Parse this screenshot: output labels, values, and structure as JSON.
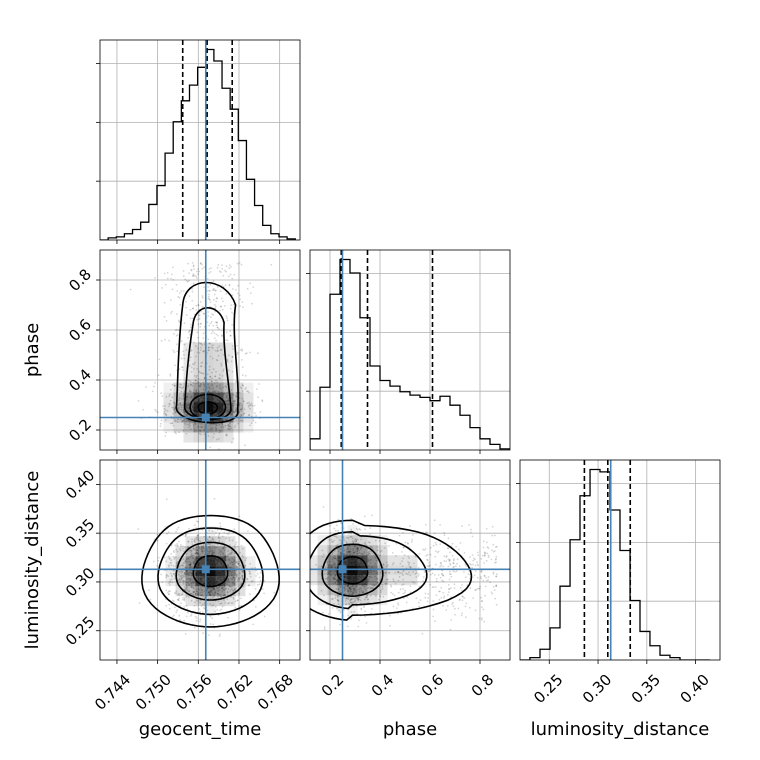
{
  "chart_data": {
    "type": "corner",
    "parameters": [
      {
        "name": "geocent_time",
        "label": "geocent_time",
        "range": [
          0.7415,
          0.771
        ],
        "ticks": [
          0.744,
          0.75,
          0.756,
          0.762,
          0.768
        ],
        "tick_labels": [
          "0.744",
          "0.750",
          "0.756",
          "0.762",
          "0.768"
        ],
        "truth": 0.7571,
        "quantiles": [
          0.7537,
          0.7573,
          0.761
        ]
      },
      {
        "name": "phase",
        "label": "phase",
        "range": [
          0.12,
          0.92
        ],
        "ticks": [
          0.2,
          0.4,
          0.6,
          0.8
        ],
        "tick_labels": [
          "0.2",
          "0.4",
          "0.6",
          "0.8"
        ],
        "truth": 0.25,
        "quantiles": [
          0.245,
          0.35,
          0.61
        ]
      },
      {
        "name": "luminosity_distance",
        "label": "luminosity_distance",
        "range": [
          0.22,
          0.425
        ],
        "ticks": [
          0.25,
          0.3,
          0.35,
          0.4
        ],
        "tick_labels": [
          "0.25",
          "0.30",
          "0.35",
          "0.40"
        ],
        "truth": 0.313,
        "quantiles": [
          0.286,
          0.31,
          0.333
        ]
      }
    ],
    "truth_color": "#4682b4",
    "hist_color": "#000000",
    "grid": true,
    "histograms": [
      {
        "param": "geocent_time",
        "bin_edges": [
          0.7415,
          0.7427,
          0.7439,
          0.7451,
          0.7463,
          0.7475,
          0.7487,
          0.7499,
          0.7511,
          0.7523,
          0.7535,
          0.7547,
          0.7559,
          0.7571,
          0.7583,
          0.7595,
          0.7607,
          0.7619,
          0.7631,
          0.7643,
          0.7655,
          0.7667,
          0.7679,
          0.7691,
          0.7703
        ],
        "counts": [
          0,
          2,
          3,
          6,
          10,
          17,
          34,
          52,
          83,
          113,
          133,
          148,
          165,
          182,
          171,
          145,
          125,
          95,
          58,
          33,
          14,
          6,
          3,
          1
        ]
      },
      {
        "param": "phase",
        "bin_edges": [
          0.12,
          0.16,
          0.2,
          0.24,
          0.28,
          0.32,
          0.36,
          0.4,
          0.44,
          0.48,
          0.52,
          0.56,
          0.6,
          0.64,
          0.68,
          0.72,
          0.76,
          0.8,
          0.84,
          0.88,
          0.92
        ],
        "counts": [
          10,
          56,
          139,
          170,
          158,
          118,
          75,
          62,
          57,
          52,
          49,
          47,
          44,
          48,
          40,
          31,
          20,
          10,
          5,
          1
        ]
      },
      {
        "param": "luminosity_distance",
        "bin_edges": [
          0.22,
          0.2302,
          0.2405,
          0.2508,
          0.261,
          0.2713,
          0.2815,
          0.2918,
          0.302,
          0.3123,
          0.3225,
          0.3328,
          0.343,
          0.3532,
          0.3635,
          0.3737,
          0.384,
          0.3942,
          0.4045,
          0.4147
        ],
        "counts": [
          0,
          2,
          9,
          27,
          62,
          101,
          138,
          160,
          158,
          126,
          92,
          50,
          24,
          12,
          4,
          2,
          0,
          0,
          0
        ]
      }
    ],
    "density_2d": [
      {
        "x": "geocent_time",
        "y": "phase",
        "contour_levels": [
          "0.5 sigma",
          "1.0 sigma",
          "1.5 sigma",
          "2.0 sigma"
        ]
      },
      {
        "x": "geocent_time",
        "y": "luminosity_distance",
        "contour_levels": [
          "0.5 sigma",
          "1.0 sigma",
          "1.5 sigma",
          "2.0 sigma"
        ]
      },
      {
        "x": "phase",
        "y": "luminosity_distance",
        "contour_levels": [
          "0.5 sigma",
          "1.0 sigma",
          "1.5 sigma",
          "2.0 sigma"
        ]
      }
    ]
  }
}
